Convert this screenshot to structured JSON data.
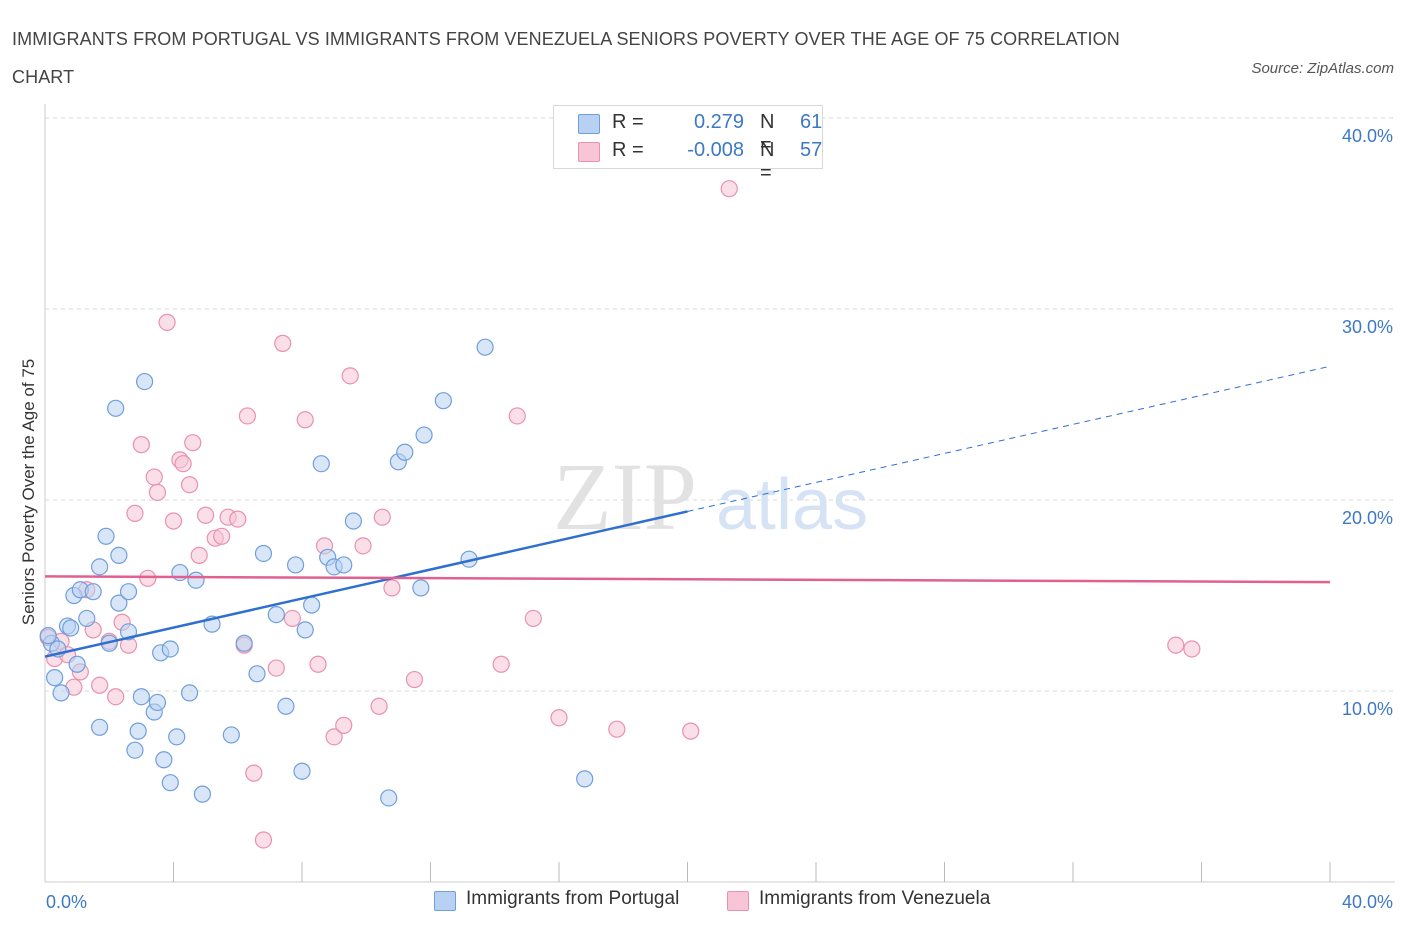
{
  "colors": {
    "series1_fill": "#b8d1f3",
    "series1_stroke": "#6f9fdc",
    "series1_line": "#2f6fcf",
    "series2_fill": "#f7c5d5",
    "series2_stroke": "#e991ad",
    "series2_line": "#e0608f",
    "grid": "#d9d9d9",
    "tick_label": "#3d78c5"
  },
  "chart_data": {
    "type": "scatter",
    "title": "IMMIGRANTS FROM PORTUGAL VS IMMIGRANTS FROM VENEZUELA SENIORS POVERTY OVER THE AGE OF 75 CORRELATION CHART",
    "source": "Source: ZipAtlas.com",
    "watermark_zip": "ZIP",
    "watermark_atlas": "atlas",
    "xlabel": "",
    "ylabel": "Seniors Poverty Over the Age of 75",
    "xlim": [
      0,
      40
    ],
    "ylim": [
      0,
      40
    ],
    "x_tick_labels": [
      "0.0%",
      "40.0%"
    ],
    "y_ticks": [
      10,
      20,
      30,
      40
    ],
    "y_tick_labels": [
      "10.0%",
      "20.0%",
      "30.0%",
      "40.0%"
    ],
    "legend": {
      "rows": [
        {
          "r_label": "R =",
          "r_value": "0.279",
          "n_label": "N =",
          "n_value": "61"
        },
        {
          "r_label": "R =",
          "r_value": "-0.008",
          "n_label": "N =",
          "n_value": "57"
        }
      ]
    },
    "series": [
      {
        "name": "Immigrants from Portugal",
        "trend": {
          "x0": 0,
          "y0": 11.8,
          "x1": 20,
          "y1": 19.4,
          "dash_x1": 40,
          "dash_y1": 27.0
        },
        "points": [
          [
            0.2,
            12.5
          ],
          [
            0.3,
            10.7
          ],
          [
            0.4,
            12.2
          ],
          [
            0.5,
            9.9
          ],
          [
            0.7,
            13.4
          ],
          [
            0.8,
            13.3
          ],
          [
            0.9,
            15.0
          ],
          [
            1.0,
            11.4
          ],
          [
            1.1,
            15.3
          ],
          [
            1.3,
            13.8
          ],
          [
            1.5,
            15.2
          ],
          [
            1.7,
            16.5
          ],
          [
            1.7,
            8.1
          ],
          [
            1.9,
            18.1
          ],
          [
            2.0,
            12.5
          ],
          [
            2.2,
            24.8
          ],
          [
            2.3,
            14.6
          ],
          [
            2.3,
            17.1
          ],
          [
            2.6,
            13.1
          ],
          [
            2.6,
            15.2
          ],
          [
            2.8,
            6.9
          ],
          [
            2.9,
            7.9
          ],
          [
            3.0,
            9.7
          ],
          [
            3.1,
            26.2
          ],
          [
            3.4,
            8.9
          ],
          [
            3.5,
            9.4
          ],
          [
            3.6,
            12.0
          ],
          [
            3.7,
            6.4
          ],
          [
            3.9,
            5.2
          ],
          [
            3.9,
            12.2
          ],
          [
            4.1,
            7.6
          ],
          [
            4.2,
            16.2
          ],
          [
            4.5,
            9.9
          ],
          [
            4.7,
            15.8
          ],
          [
            4.9,
            4.6
          ],
          [
            5.2,
            13.5
          ],
          [
            5.8,
            7.7
          ],
          [
            6.2,
            12.5
          ],
          [
            6.6,
            10.9
          ],
          [
            6.8,
            17.2
          ],
          [
            7.2,
            14.0
          ],
          [
            7.5,
            9.2
          ],
          [
            7.8,
            16.6
          ],
          [
            8.0,
            5.8
          ],
          [
            8.1,
            13.2
          ],
          [
            8.3,
            14.5
          ],
          [
            8.6,
            21.9
          ],
          [
            8.8,
            17.0
          ],
          [
            9.0,
            16.5
          ],
          [
            9.3,
            16.6
          ],
          [
            9.6,
            18.9
          ],
          [
            10.7,
            4.4
          ],
          [
            11.0,
            22.0
          ],
          [
            11.2,
            22.5
          ],
          [
            11.7,
            15.4
          ],
          [
            11.8,
            23.4
          ],
          [
            12.4,
            25.2
          ],
          [
            13.2,
            16.9
          ],
          [
            13.7,
            28.0
          ],
          [
            16.8,
            5.4
          ],
          [
            0.1,
            12.9
          ]
        ]
      },
      {
        "name": "Immigrants from Venezuela",
        "trend": {
          "x0": 0,
          "y0": 16.0,
          "x1": 40,
          "y1": 15.7
        },
        "points": [
          [
            0.1,
            12.8
          ],
          [
            0.3,
            11.7
          ],
          [
            0.5,
            12.6
          ],
          [
            0.7,
            11.9
          ],
          [
            0.9,
            10.2
          ],
          [
            1.1,
            11.0
          ],
          [
            1.3,
            15.3
          ],
          [
            1.5,
            13.2
          ],
          [
            1.7,
            10.3
          ],
          [
            2.0,
            12.6
          ],
          [
            2.2,
            9.7
          ],
          [
            2.4,
            13.6
          ],
          [
            2.6,
            12.4
          ],
          [
            2.8,
            19.3
          ],
          [
            3.0,
            22.9
          ],
          [
            3.2,
            15.9
          ],
          [
            3.4,
            21.2
          ],
          [
            3.5,
            20.4
          ],
          [
            3.8,
            29.3
          ],
          [
            4.0,
            18.9
          ],
          [
            4.2,
            22.1
          ],
          [
            4.3,
            21.9
          ],
          [
            4.5,
            20.8
          ],
          [
            4.6,
            23.0
          ],
          [
            4.8,
            17.1
          ],
          [
            5.0,
            19.2
          ],
          [
            5.3,
            18.0
          ],
          [
            5.5,
            18.1
          ],
          [
            5.7,
            19.1
          ],
          [
            6.0,
            19.0
          ],
          [
            6.2,
            12.4
          ],
          [
            6.3,
            24.4
          ],
          [
            6.5,
            5.7
          ],
          [
            6.8,
            2.2
          ],
          [
            7.2,
            11.2
          ],
          [
            7.4,
            28.2
          ],
          [
            7.7,
            13.8
          ],
          [
            8.1,
            24.2
          ],
          [
            8.5,
            11.4
          ],
          [
            8.7,
            17.6
          ],
          [
            9.0,
            7.6
          ],
          [
            9.3,
            8.2
          ],
          [
            9.5,
            26.5
          ],
          [
            9.9,
            17.6
          ],
          [
            10.4,
            9.2
          ],
          [
            10.5,
            19.1
          ],
          [
            10.8,
            15.4
          ],
          [
            11.5,
            10.6
          ],
          [
            14.2,
            11.4
          ],
          [
            14.7,
            24.4
          ],
          [
            15.2,
            13.8
          ],
          [
            16.0,
            8.6
          ],
          [
            17.8,
            8.0
          ],
          [
            20.1,
            7.9
          ],
          [
            21.3,
            36.3
          ],
          [
            35.2,
            12.4
          ],
          [
            35.7,
            12.2
          ]
        ]
      }
    ]
  }
}
